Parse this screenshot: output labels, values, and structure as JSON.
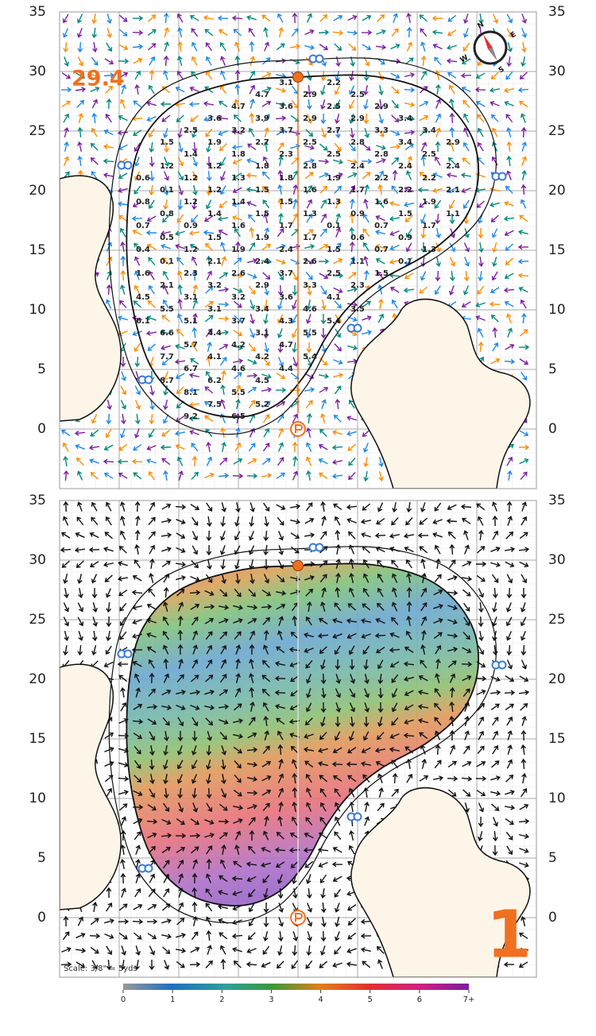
{
  "pin_distance": "29.4",
  "hole_number": "1",
  "scale_note": "Scale: 3/8\" = 5yds",
  "axis_ticks": [
    35,
    30,
    25,
    20,
    15,
    10,
    5,
    0
  ],
  "compass": [
    "N",
    "E",
    "S",
    "W"
  ],
  "legend": {
    "ticks": [
      0,
      1,
      2,
      3,
      4,
      5,
      6,
      {
        "value": 7,
        "label": "7+"
      }
    ]
  },
  "slope_rows": [
    [
      3.1,
      2.2
    ],
    [
      4.7,
      2.9,
      2.5
    ],
    [
      4.7,
      3.6,
      2.5,
      2.9
    ],
    [
      3.6,
      3.9,
      2.9,
      2.9,
      3.4
    ],
    [
      2.5,
      3.2,
      3.7,
      2.7,
      3.3,
      3.4
    ],
    [
      1.5,
      1.9,
      2.7,
      2.5,
      2.8,
      3.4,
      2.9
    ],
    [
      1.4,
      1.8,
      2.3,
      2.5,
      2.8,
      2.5
    ],
    [
      1.2,
      1.2,
      1.8,
      2.8,
      2.4,
      2.4,
      2.4
    ],
    [
      0.6,
      1.2,
      1.3,
      1.8,
      1.9,
      2.2,
      2.2
    ],
    [
      0.1,
      1.2,
      1.5,
      1.6,
      1.7,
      2.2,
      2.1
    ],
    [
      0.8,
      1.2,
      1.4,
      1.5,
      1.3,
      1.6,
      1.9
    ],
    [
      0.8,
      1.4,
      1.5,
      1.3,
      0.9,
      1.5,
      1.1
    ],
    [
      0.7,
      0.9,
      1.6,
      1.7,
      0.1,
      0.7,
      1.7
    ],
    [
      0.5,
      1.5,
      1.9,
      1.7,
      0.6,
      0.9
    ],
    [
      0.4,
      1.2,
      1.9,
      2.4,
      1.5,
      0.7,
      1.3
    ],
    [
      0.1,
      2.1,
      2.4,
      2.6,
      1.1,
      0.1
    ],
    [
      1.6,
      2.3,
      2.6,
      3.7,
      2.5,
      1.5
    ],
    [
      2.1,
      3.2,
      2.9,
      3.3,
      2.3
    ],
    [
      4.5,
      3.1,
      3.2,
      3.6,
      4.1
    ],
    [
      5.5,
      3.1,
      3.4,
      4.6,
      3.5
    ],
    [
      6.1,
      5.1,
      3.7,
      4.3,
      5.4
    ],
    [
      6.6,
      4.4,
      3.1,
      5.5
    ],
    [
      5.7,
      4.2,
      4.7
    ],
    [
      7.7,
      4.1,
      4.2,
      5.4
    ],
    [
      6.7,
      4.6,
      4.4
    ],
    [
      8.7,
      6.2,
      4.5
    ],
    [
      8.1,
      5.5
    ],
    [
      7.5,
      5.2
    ],
    [
      9.2,
      6.5
    ]
  ]
}
